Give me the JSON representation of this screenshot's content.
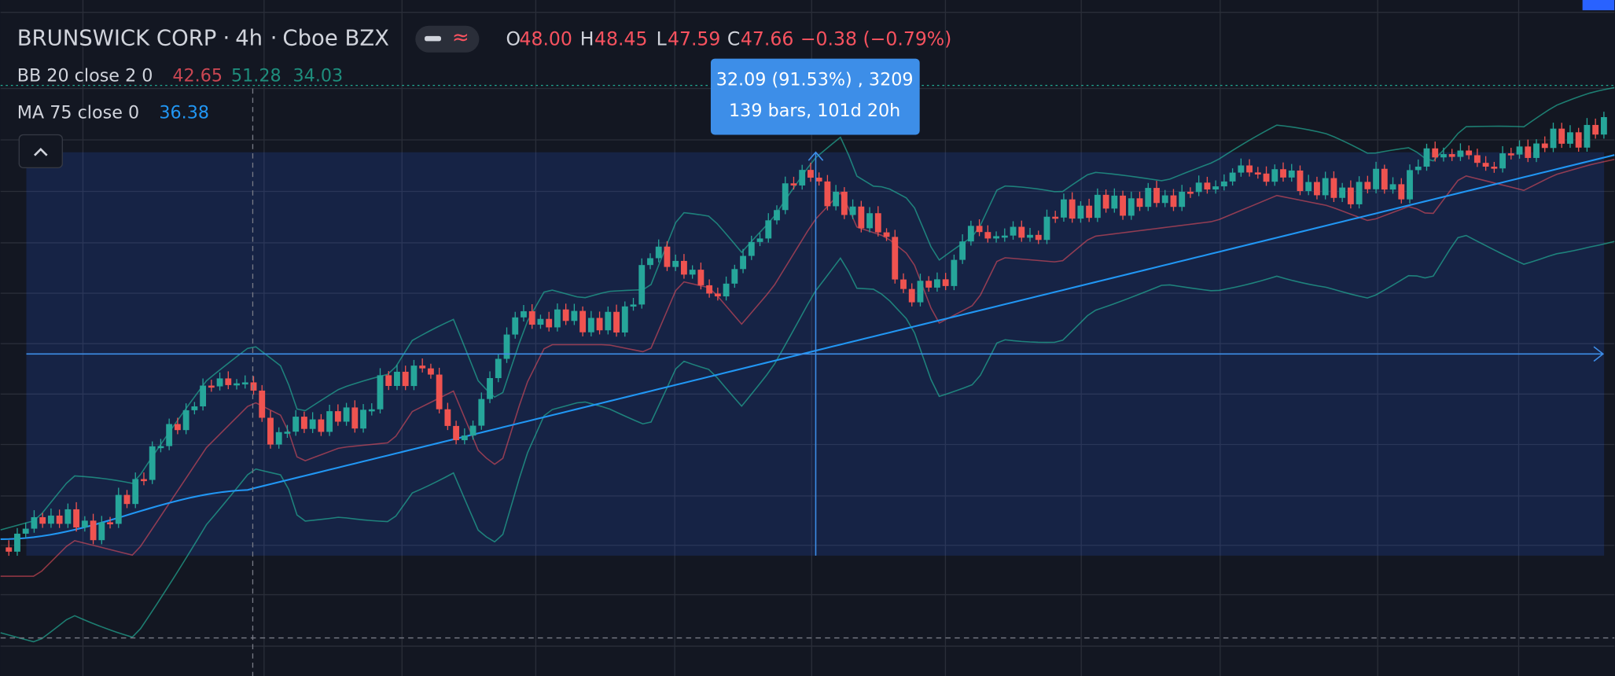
{
  "header": {
    "symbol": "BRUNSWICK CORP",
    "interval": "4h",
    "exchange": "Cboe BZX",
    "ohlc": [
      {
        "key": "O",
        "value": "48.00"
      },
      {
        "key": "H",
        "value": "48.45"
      },
      {
        "key": "L",
        "value": "47.59"
      },
      {
        "key": "C",
        "value": "47.66"
      }
    ],
    "change": "−0.38 (−0.79%)"
  },
  "indicators": [
    {
      "label": "BB 20 close 2 0",
      "values": [
        "42.65",
        "51.28",
        "34.03"
      ]
    },
    {
      "label": "MA 75 close 0",
      "values": [
        "36.38"
      ]
    }
  ],
  "measure": {
    "line1": "32.09 (91.53%) , 3209",
    "line2": "139 bars, 101d 20h"
  }
}
